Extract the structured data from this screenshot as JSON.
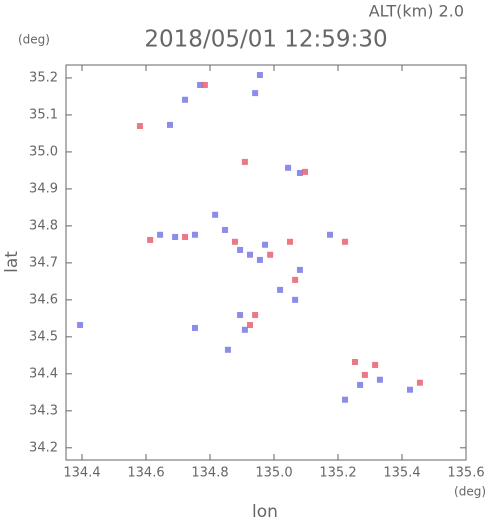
{
  "chart_data": {
    "type": "scatter",
    "title": "2018/05/01 12:59:30",
    "subtitle": "ALT(km) 2.0",
    "y_unit": "(deg)",
    "x_unit": "(deg)",
    "ylabel": "lat",
    "xlabel": "lon",
    "xlim": [
      134.35,
      135.6
    ],
    "ylim": [
      34.167,
      35.235
    ],
    "xticks": [
      134.4,
      134.6,
      134.8,
      {
        "value": 135.0,
        "label": "135.0"
      },
      135.2,
      135.4,
      135.6
    ],
    "yticks": [
      34.2,
      34.3,
      34.4,
      34.5,
      34.6,
      34.7,
      34.8,
      34.9,
      {
        "value": 35.0,
        "label": "35.0"
      },
      35.1,
      35.2
    ],
    "series": [
      {
        "color": "#7878e6",
        "x": [
          134.722,
          134.769,
          134.941,
          134.956,
          134.816,
          134.847,
          134.691,
          134.644,
          134.753,
          134.894,
          134.925,
          134.972,
          135.019,
          135.081,
          134.909,
          134.894,
          134.856,
          134.753,
          134.394,
          135.175,
          135.269,
          135.222,
          135.331,
          135.425,
          135.044,
          135.081,
          134.675,
          135.066,
          134.956
        ],
        "y": [
          35.141,
          35.181,
          35.159,
          35.208,
          34.83,
          34.789,
          34.77,
          34.776,
          34.776,
          34.735,
          34.722,
          34.749,
          34.627,
          34.681,
          34.519,
          34.559,
          34.465,
          34.524,
          34.532,
          34.776,
          34.37,
          34.33,
          34.384,
          34.357,
          34.957,
          34.943,
          35.073,
          34.6,
          34.708
        ]
      },
      {
        "color": "#e8606e",
        "x": [
          134.581,
          134.909,
          135.097,
          134.613,
          134.878,
          134.988,
          135.066,
          134.925,
          134.941,
          135.222,
          135.253,
          135.316,
          135.456,
          134.722,
          134.784,
          135.05,
          135.284
        ],
        "y": [
          35.07,
          34.973,
          34.946,
          34.762,
          34.757,
          34.722,
          34.654,
          34.532,
          34.559,
          34.757,
          34.432,
          34.424,
          34.376,
          34.77,
          35.181,
          34.757,
          34.397
        ]
      }
    ]
  }
}
